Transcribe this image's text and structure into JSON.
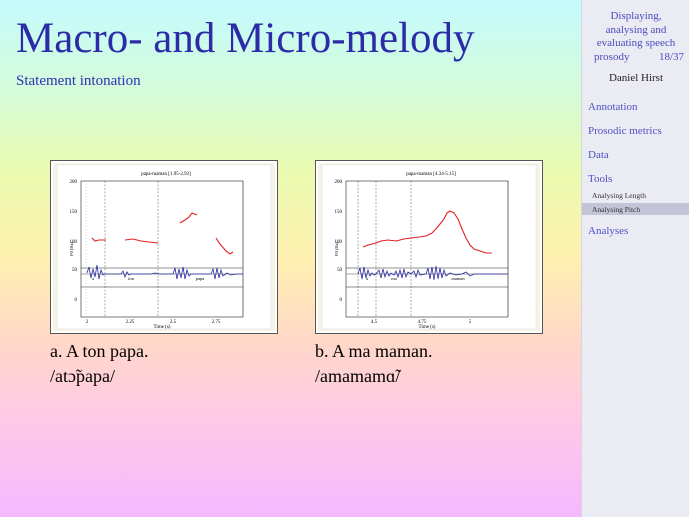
{
  "slide": {
    "title": "Macro- and Micro-melody",
    "subtitle": "Statement intonation"
  },
  "figures": [
    {
      "plot_title": "papa-maman [1.95-2.93]",
      "y_ticks": [
        "200",
        "150",
        "100",
        "50",
        "0"
      ],
      "y_label": "F0 (Hz)",
      "x_ticks": [
        "2",
        "2.25",
        "2.5",
        "2.75"
      ],
      "x_label": "Time (s)",
      "segments": [
        "a",
        "ton",
        "papa"
      ],
      "caption_label": "a.",
      "caption_text": "A ton papa.",
      "transcription": "/atɔ̃papa/"
    },
    {
      "plot_title": "papa-maman [4.34-5.15]",
      "y_ticks": [
        "200",
        "150",
        "100",
        "50",
        "0"
      ],
      "y_label": "F0 (Hz)",
      "x_ticks": [
        "4.5",
        "4.75",
        "5"
      ],
      "x_label": "Time (s)",
      "segments": [
        "a",
        "ma",
        "maman"
      ],
      "caption_label": "b.",
      "caption_text": "A ma maman.",
      "transcription": "/amamamɑ̃/"
    }
  ],
  "sidebar": {
    "header_line1": "Displaying,",
    "header_line2": "analysing and",
    "header_line3": "evaluating speech",
    "header_line4": "prosody",
    "page": "18/37",
    "author": "Daniel Hirst",
    "nav": [
      {
        "label": "Annotation"
      },
      {
        "label": "Prosodic metrics"
      },
      {
        "label": "Data"
      },
      {
        "label": "Tools"
      },
      {
        "label": "Analyses"
      }
    ],
    "subnav": [
      {
        "label": "Analysing Length"
      },
      {
        "label": "Analysing Pitch"
      }
    ]
  },
  "colors": {
    "title": "#2c2ca8",
    "pitch_curve": "#e02020",
    "waveform": "#2a2aa0",
    "sidebar_link": "#5050c8"
  }
}
